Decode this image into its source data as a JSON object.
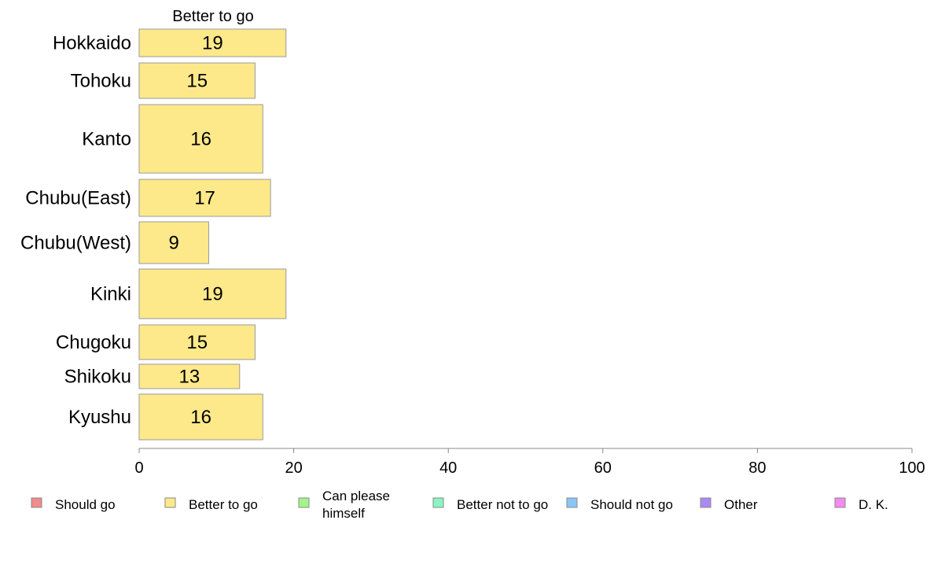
{
  "chart_data": {
    "type": "bar",
    "orientation": "horizontal",
    "stacked": true,
    "categories": [
      "Hokkaido",
      "Tohoku",
      "Kanto",
      "Chubu(East)",
      "Chubu(West)",
      "Kinki",
      "Chugoku",
      "Shikoku",
      "Kyushu"
    ],
    "series": [
      {
        "name": "Better to go",
        "color": "#fde98a",
        "values": [
          19,
          15,
          16,
          17,
          9,
          19,
          15,
          13,
          16
        ]
      }
    ],
    "shown_series_title": "Better to go",
    "xlim": [
      0,
      100
    ],
    "xticks": [
      0,
      20,
      40,
      60,
      80,
      100
    ],
    "grid": false,
    "legend": {
      "position": "bottom",
      "entries": [
        {
          "label": "Should go",
          "color": "#f28b8b"
        },
        {
          "label": "Better to go",
          "color": "#fde98a"
        },
        {
          "label": "Can please himself",
          "lines": [
            "Can please",
            "himself"
          ],
          "color": "#a3f58a"
        },
        {
          "label": "Better not to go",
          "color": "#8af5c2"
        },
        {
          "label": "Should not go",
          "color": "#8ac6f5"
        },
        {
          "label": "Other",
          "color": "#a98af5"
        },
        {
          "label": "D. K.",
          "color": "#f58af0"
        }
      ]
    }
  }
}
